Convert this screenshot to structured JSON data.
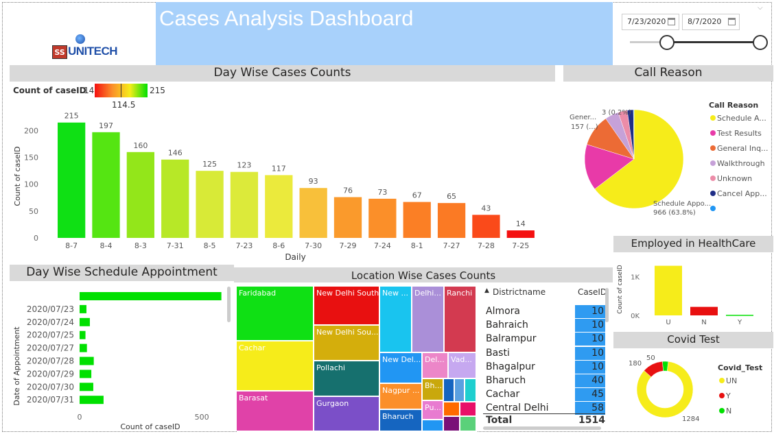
{
  "header": {
    "title": "Cases Analysis Dashboard",
    "logo_ss": "SS",
    "logo_name": "UNITECH",
    "date_start": "7/23/2020",
    "date_end": "8/7/2020"
  },
  "colors": {
    "banner": "#d9d9d9",
    "title_bg": "#a8d1fb",
    "bar_green": "#00e000",
    "table_blue": "#2f9bf1"
  },
  "day_wise": {
    "banner": "Day Wise Cases Counts",
    "legend_title": "Count of caseID",
    "legend_min": "14",
    "legend_max": "215",
    "legend_mid": "114.5",
    "chart_data": {
      "type": "bar",
      "xlabel": "Daily",
      "ylabel": "Count of caseID",
      "categories": [
        "8-7",
        "8-4",
        "8-3",
        "7-31",
        "8-5",
        "7-23",
        "8-6",
        "7-30",
        "7-29",
        "7-24",
        "8-1",
        "7-27",
        "7-28",
        "7-25"
      ],
      "values": [
        215,
        197,
        160,
        146,
        125,
        123,
        117,
        93,
        76,
        73,
        67,
        65,
        43,
        14
      ],
      "colors": [
        "#0fe014",
        "#55e512",
        "#93e61a",
        "#b7e827",
        "#d8ea37",
        "#dcea3a",
        "#ebea3c",
        "#f8c03a",
        "#fa9a2c",
        "#fb8f29",
        "#fb7f25",
        "#fb7a24",
        "#fa4a1a",
        "#f41010"
      ],
      "yticks": [
        0,
        50,
        100,
        150,
        200
      ],
      "ylim": [
        0,
        230
      ]
    }
  },
  "call_reason": {
    "banner": "Call Reason",
    "legend_title": "Call Reason",
    "label_general": "Gener...",
    "label_general_val": "157 (...)",
    "label_small": "3 (0.2%)",
    "label_schedule": "Schedule Appo...",
    "label_schedule_val": "966 (63.8%)",
    "chart_data": {
      "type": "pie",
      "categories": [
        "Schedule A...",
        "Test Results",
        "General Inq...",
        "Walkthrough",
        "Unknown",
        "Cancel App...",
        ""
      ],
      "values": [
        966,
        227,
        157,
        67,
        45,
        30,
        3
      ],
      "colors": [
        "#f6ec1a",
        "#e83aa8",
        "#ec6b35",
        "#c6a1d8",
        "#ec8ca8",
        "#1f2d86",
        "#2196f3"
      ]
    }
  },
  "employed": {
    "banner": "Employed in HealthCare",
    "chart_data": {
      "type": "bar",
      "ylabel": "Count of caseID",
      "categories": [
        "U",
        "N",
        "Y"
      ],
      "values": [
        1280,
        220,
        14
      ],
      "colors": [
        "#f6ec1a",
        "#e81010",
        "#00e000"
      ],
      "yticks_labels": [
        "0K",
        "1K"
      ],
      "yticks": [
        0,
        1000
      ],
      "ylim": [
        0,
        1380
      ]
    }
  },
  "schedule": {
    "banner": "Day Wise Schedule Appointment",
    "chart_data": {
      "type": "bar",
      "xlabel": "Count of caseID",
      "ylabel": "Date of Appointment",
      "categories": [
        "",
        "2020/07/23",
        "2020/07/24",
        "2020/07/25",
        "2020/07/27",
        "2020/07/28",
        "2020/07/29",
        "2020/07/30",
        "2020/07/31"
      ],
      "values": [
        580,
        28,
        42,
        24,
        30,
        58,
        48,
        56,
        98
      ],
      "xticks": [
        0,
        500
      ],
      "xlim": [
        0,
        640
      ]
    }
  },
  "location": {
    "banner": "Location Wise Cases Counts",
    "treemap": [
      {
        "label": "Faridabad",
        "color": "#0fe014"
      },
      {
        "label": "Cachar",
        "color": "#f6ec1a"
      },
      {
        "label": "Barasat",
        "color": "#e042a8"
      },
      {
        "label": "New Delhi South",
        "color": "#e81010"
      },
      {
        "label": "New Delhi Sou...",
        "color": "#d4ae0c"
      },
      {
        "label": "Pollachi",
        "color": "#16706e"
      },
      {
        "label": "Gurgaon",
        "color": "#7b4fc8"
      },
      {
        "label": "New ...",
        "color": "#19c4ef"
      },
      {
        "label": "Delhi...",
        "color": "#aa8fd8"
      },
      {
        "label": "Ranchi",
        "color": "#d33a50"
      },
      {
        "label": "New Del...",
        "color": "#2196f3"
      },
      {
        "label": "Del...",
        "color": "#ec86c8"
      },
      {
        "label": "Vad...",
        "color": "#c6a8f0"
      },
      {
        "label": "Nagpur ...",
        "color": "#fb8f29"
      },
      {
        "label": "Bh...",
        "color": "#c9a80c"
      },
      {
        "label": "Pu...",
        "color": "#e87bd0"
      },
      {
        "label": "Bharuch",
        "color": "#1565c0"
      },
      {
        "label": "",
        "color": "#1565c0"
      },
      {
        "label": "",
        "color": "#5aa0e0"
      },
      {
        "label": "",
        "color": "#1ecfcf"
      },
      {
        "label": "",
        "color": "#ff6a00"
      },
      {
        "label": "",
        "color": "#e81068"
      },
      {
        "label": "",
        "color": "#7a1078"
      },
      {
        "label": "",
        "color": "#5ad17a"
      },
      {
        "label": "",
        "color": "#2196f3"
      }
    ],
    "table": {
      "col_district": "Districtname",
      "col_case": "CaseID",
      "rows": [
        {
          "name": "Almora",
          "value": "10"
        },
        {
          "name": "Bahraich",
          "value": "10"
        },
        {
          "name": "Balrampur",
          "value": "10"
        },
        {
          "name": "Basti",
          "value": "10"
        },
        {
          "name": "Bhagalpur",
          "value": "10"
        },
        {
          "name": "Bharuch",
          "value": "40"
        },
        {
          "name": "Cachar",
          "value": "45"
        },
        {
          "name": "Central Delhi",
          "value": "58"
        }
      ],
      "total_label": "Total",
      "total_value": "1514"
    }
  },
  "covid": {
    "banner": "Covid Test",
    "legend_title": "Covid_Test",
    "label_top": "50",
    "label_left": "180",
    "label_bottom": "1284",
    "chart_data": {
      "type": "pie",
      "categories": [
        "UN",
        "Y",
        "N"
      ],
      "values": [
        1284,
        180,
        50
      ],
      "colors": [
        "#f6ec1a",
        "#e81010",
        "#00e000"
      ]
    }
  }
}
